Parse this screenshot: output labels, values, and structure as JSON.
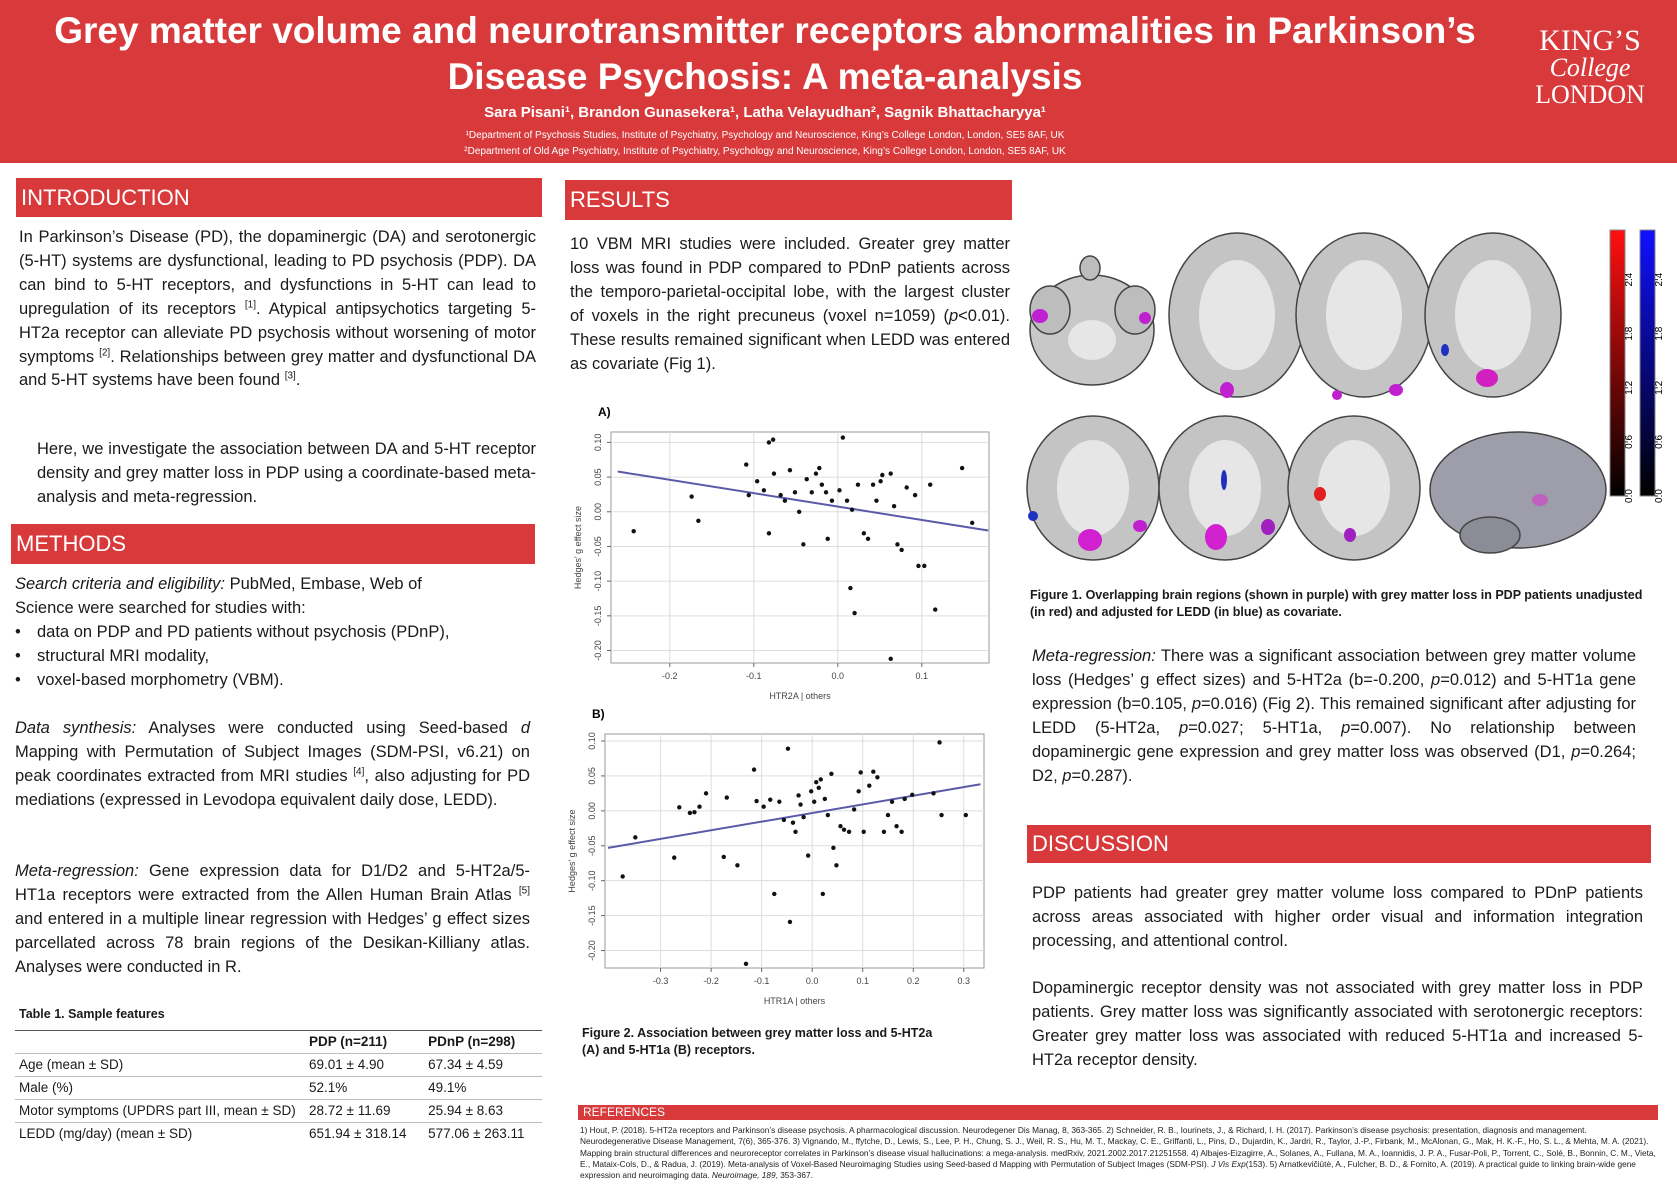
{
  "header": {
    "title_line1": "Grey matter volume and neurotransmitter receptors abnormalities in Parkinson’s",
    "title_line2": "Disease Psychosis: A meta-analysis",
    "authors": "Sara Pisani¹, Brandon Gunasekera¹, Latha Velayudhan², Sagnik Bhattacharyya¹",
    "affiliations": [
      "¹Department of Psychosis Studies, Institute of Psychiatry, Psychology and Neuroscience, King’s College London, London, SE5 8AF, UK",
      "²Department of Old Age Psychiatry, Institute of Psychiatry, Psychology and Neuroscience, King’s College London, London, SE5 8AF, UK"
    ],
    "logo": [
      "KING’S",
      "College",
      "LONDON"
    ]
  },
  "intro": {
    "heading": "INTRODUCTION",
    "p1": [
      "In Parkinson’s Disease (PD), the dopaminergic (DA) and serotonergic (5-HT) systems are dysfunctional, leading to PD psychosis (PDP). DA can bind to 5-HT receptors, and dysfunctions in 5-HT can lead to upregulation of its receptors ",
      "[1]",
      ". Atypical antipsychotics targeting 5-HT2a receptor can alleviate PD psychosis without worsening of motor symptoms ",
      "[2]",
      ". Relationships between grey matter and dysfunctional DA and 5-HT systems have been found ",
      "[3]",
      "."
    ],
    "p2": "Here, we investigate the association between DA and 5-HT receptor density and grey matter loss in PDP using a coordinate-based meta-analysis and meta-regression."
  },
  "methods": {
    "heading": "METHODS",
    "search": [
      "Search criteria and eligibility:",
      " PubMed, Embase, Web of Science were searched for studies with:"
    ],
    "bullets": [
      "data on PDP and PD patients without psychosis (PDnP),",
      "structural MRI modality,",
      "voxel-based morphometry (VBM)."
    ],
    "synthesis": [
      "Data synthesis:",
      " Analyses were conducted using Seed-based ",
      "d",
      " Mapping with Permutation of Subject Images (SDM-PSI, v6.21) on peak coordinates extracted from MRI studies ",
      "[4]",
      ", also adjusting for PD mediations (expressed in Levodopa equivalent daily dose, LEDD)."
    ],
    "meta": [
      "Meta-regression:",
      " Gene expression data for D1/D2 and 5-HT2a/5-HT1a receptors were extracted from the Allen Human Brain Atlas ",
      "[5]",
      " and entered in a multiple linear regression with Hedges’ g effect sizes parcellated across 78 brain regions of the Desikan-Killiany atlas. Analyses were conducted in R."
    ]
  },
  "table": {
    "caption": "Table 1. Sample features",
    "header": [
      "PDP (n=211)",
      "PDnP (n=298)"
    ],
    "rows": [
      [
        "Age (mean ± SD)",
        "69.01 ± 4.90",
        "67.34 ± 4.59"
      ],
      [
        "Male (%)",
        "52.1%",
        "49.1%"
      ],
      [
        "Motor symptoms (UPDRS part III, mean ± SD)",
        "28.72 ± 11.69",
        "25.94 ± 8.63"
      ],
      [
        "LEDD (mg/day) (mean ± SD)",
        "651.94 ± 318.14",
        "577.06 ± 263.11"
      ]
    ]
  },
  "results": {
    "heading": "RESULTS",
    "text": [
      "10 VBM MRI studies were included. Greater grey matter loss was found in PDP compared to PDnP patients across the temporo-parietal-occipital lobe, with the largest cluster of voxels in the right precuneus (voxel n=1059) (",
      "p",
      "<0.01). These results remained significant when LEDD was entered as covariate (Fig 1)."
    ],
    "fig2_caption": "Figure 2. Association between grey matter loss and 5-HT2a (A) and 5-HT1a (B) receptors.",
    "fig1_caption": "Figure 1. Overlapping brain regions (shown in purple) with grey matter loss in PDP patients unadjusted (in red) and adjusted for LEDD (in blue) as covariate.",
    "colorbar_ticks": [
      2.4,
      1.8,
      1.2,
      0.6,
      {
        "value": 0,
        "label": "0.0"
      }
    ],
    "colorbar_lim": [
      0,
      2.95
    ],
    "meta": [
      "Meta-regression:",
      " There was a significant association between grey matter volume loss (Hedges’ g effect sizes) and 5-HT2a (b=-0.200, ",
      "p",
      "=0.012) and 5-HT1a gene expression (b=0.105, ",
      "p",
      "=0.016) (Fig 2). This remained significant after adjusting for LEDD (5-HT2a, ",
      "p",
      "=0.027; 5-HT1a, ",
      "p",
      "=0.007). No relationship between dopaminergic gene expression and grey matter loss was observed (D1, ",
      "p",
      "=0.264; D2, ",
      "p",
      "=0.287)."
    ]
  },
  "discussion": {
    "heading": "DISCUSSION",
    "p1": "PDP patients had greater grey matter volume loss compared to PDnP patients across areas associated with higher order visual and information integration processing, and attentional control.",
    "p2": "Dopaminergic receptor density was not associated with grey matter loss in PDP patients. Grey matter loss was significantly associated with serotonergic receptors: Greater grey matter loss was associated with reduced 5-HT1a and increased 5-HT2a receptor density."
  },
  "references": {
    "heading": "REFERENCES",
    "text": [
      "1) Hout, P. (2018). 5-HT2a receptors and Parkinson’s disease psychosis. A pharmacological discussion. Neurodegener Dis Manag, 8, 363-365. 2) Schneider, R. B., Iourinets, J., & Richard, I. H. (2017). Parkinson’s disease psychosis: presentation, diagnosis and management. Neurodegenerative Disease Management, 7(6), 365-376. 3) Vignando, M., ffytche, D., Lewis, S., Lee, P. H., Chung, S. J., Weil, R. S., Hu, M. T., Mackay, C. E., Griffanti, L., Pins, D., Dujardin, K., Jardri, R., Taylor, J.-P., Firbank, M., McAlonan, G., Mak, H. K.-F., Ho, S. L., & Mehta, M. A. (2021). Mapping brain structural differences and neuroreceptor correlates in Parkinson’s disease visual hallucinations: a mega-analysis. medRxiv, 2021.2002.2017.21251558. 4) Albajes-Eizagirre, A., Solanes, A., Fullana, M. A., Ioannidis, J. P. A., Fusar-Poli, P., Torrent, C., Solé, B., Bonnin, C. M., Vieta, E., Mataix-Cols, D., & Radua, J. (2019). Meta-analysis of Voxel-Based Neuroimaging Studies using Seed-based d Mapping with Permutation of Subject Images (SDM-PSI). ",
      "J Vis Exp",
      "(153).  5) Arnatkevičiūtė, A., Fulcher, B. D., & Fornito, A. (2019). A practical guide to linking brain-wide gene expression and neuroimaging data. ",
      "Neuroimage, 189",
      ", 353-367."
    ]
  },
  "chart_data": [
    {
      "type": "scatter",
      "title": "A)",
      "x_label": "HTR2A | others",
      "y_label": "Hedges' g effect size",
      "x": [
        -0.243,
        -0.174,
        -0.166,
        -0.109,
        -0.106,
        -0.082,
        -0.077,
        -0.082,
        -0.096,
        -0.088,
        -0.076,
        -0.068,
        -0.063,
        -0.057,
        -0.051,
        -0.046,
        -0.041,
        -0.037,
        -0.031,
        -0.026,
        -0.022,
        -0.019,
        -0.014,
        -0.012,
        -0.007,
        0.002,
        0.006,
        0.011,
        0.015,
        0.017,
        0.02,
        0.024,
        0.031,
        0.036,
        0.042,
        0.046,
        0.051,
        0.053,
        0.063,
        0.067,
        0.071,
        0.076,
        0.082,
        0.092,
        0.096,
        0.103,
        0.11,
        0.116,
        0.063,
        0.148,
        0.16
      ],
      "y": [
        -0.028,
        0.022,
        -0.013,
        0.068,
        0.024,
        0.1,
        0.104,
        -0.031,
        0.044,
        0.031,
        0.055,
        0.024,
        0.016,
        0.06,
        0.028,
        0.0,
        -0.047,
        0.047,
        0.028,
        0.055,
        0.063,
        0.039,
        0.028,
        -0.039,
        0.016,
        0.031,
        0.107,
        0.016,
        -0.11,
        0.003,
        -0.146,
        0.039,
        -0.031,
        -0.039,
        0.039,
        0.016,
        0.044,
        0.053,
        0.055,
        0.008,
        -0.047,
        -0.055,
        0.035,
        0.024,
        -0.078,
        -0.078,
        0.039,
        -0.141,
        -0.212,
        0.063,
        -0.016
      ],
      "fit": {
        "x": [
          -0.262,
          0.179
        ],
        "y": [
          0.058,
          -0.027
        ]
      },
      "xlim": [
        -0.27,
        0.18
      ],
      "ylim": [
        -0.218,
        0.115
      ],
      "xticks": [
        -0.2,
        -0.1,
        {
          "value": 0,
          "label": "0.0"
        },
        0.1
      ],
      "yticks": [
        {
          "value": 0.1,
          "label": "0.10"
        },
        0.05,
        {
          "value": 0,
          "label": "0.00"
        },
        -0.05,
        {
          "value": -0.1,
          "label": "-0.10"
        },
        -0.15,
        {
          "value": -0.2,
          "label": "-0.20"
        }
      ],
      "point_color": "#111111",
      "fit_color": "#5a5aa8",
      "grid": true
    },
    {
      "type": "scatter",
      "title": "B)",
      "x_label": "HTR1A | others",
      "y_label": "Hedges' g effect size",
      "x": [
        -0.375,
        -0.35,
        -0.273,
        -0.263,
        -0.242,
        -0.233,
        -0.223,
        -0.21,
        -0.175,
        -0.169,
        -0.148,
        -0.131,
        -0.115,
        -0.11,
        -0.096,
        -0.083,
        -0.075,
        -0.065,
        -0.056,
        -0.044,
        -0.038,
        -0.033,
        -0.027,
        -0.023,
        -0.017,
        -0.008,
        -0.002,
        0.004,
        0.008,
        0.013,
        0.017,
        0.021,
        0.025,
        0.031,
        0.038,
        0.042,
        0.048,
        0.056,
        0.063,
        0.073,
        0.083,
        0.092,
        0.096,
        0.102,
        0.113,
        0.121,
        0.129,
        0.142,
        0.15,
        0.158,
        0.167,
        0.177,
        0.183,
        0.198,
        0.24,
        0.252,
        0.256,
        0.304,
        -0.048
      ],
      "y": [
        -0.094,
        -0.038,
        -0.067,
        0.005,
        -0.003,
        -0.002,
        0.006,
        0.025,
        -0.066,
        0.019,
        -0.078,
        -0.219,
        0.059,
        0.014,
        0.006,
        0.016,
        -0.119,
        0.013,
        -0.013,
        -0.159,
        -0.017,
        -0.03,
        0.022,
        0.009,
        -0.009,
        -0.064,
        0.028,
        0.013,
        0.041,
        0.033,
        0.045,
        -0.119,
        0.017,
        -0.006,
        0.053,
        -0.053,
        -0.078,
        -0.022,
        -0.027,
        -0.03,
        0.002,
        0.028,
        0.055,
        -0.03,
        0.036,
        0.056,
        0.048,
        -0.03,
        -0.006,
        0.013,
        -0.022,
        -0.03,
        0.017,
        0.023,
        0.025,
        0.098,
        -0.006,
        -0.006,
        0.089
      ],
      "fit": {
        "x": [
          -0.404,
          0.333
        ],
        "y": [
          -0.053,
          0.038
        ]
      },
      "xlim": [
        -0.41,
        0.34
      ],
      "ylim": [
        -0.225,
        0.11
      ],
      "xticks": [
        -0.3,
        -0.2,
        -0.1,
        {
          "value": 0,
          "label": "0.0"
        },
        0.1,
        0.2,
        0.3
      ],
      "yticks": [
        {
          "value": 0.1,
          "label": "0.10"
        },
        0.05,
        {
          "value": 0,
          "label": "0.00"
        },
        -0.05,
        {
          "value": -0.1,
          "label": "-0.10"
        },
        -0.15,
        {
          "value": -0.2,
          "label": "-0.20"
        }
      ],
      "point_color": "#111111",
      "fit_color": "#5a5aa8",
      "grid": true
    }
  ]
}
